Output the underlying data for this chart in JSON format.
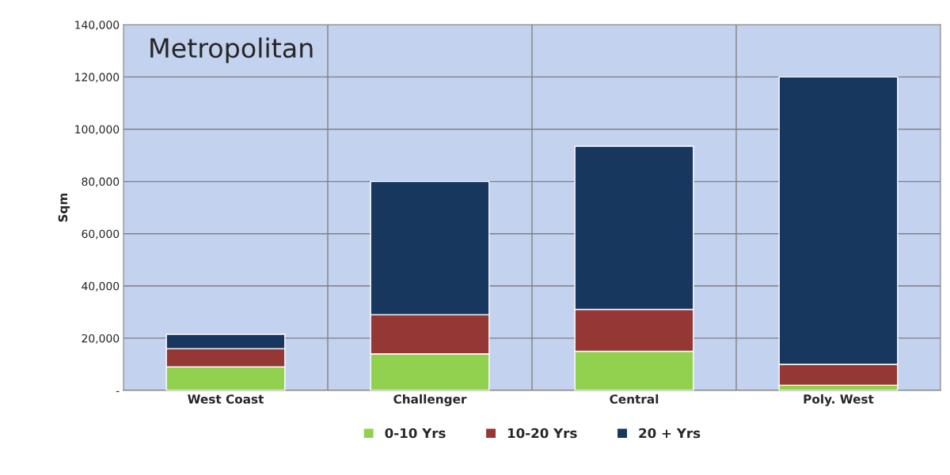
{
  "chart_data": {
    "type": "bar",
    "title": "Metropolitan",
    "ylabel": "Sqm",
    "stacked": true,
    "categories": [
      "West Coast",
      "Challenger",
      "Central",
      "Poly. West"
    ],
    "series": [
      {
        "name": "0-10 Yrs",
        "color": "#92d050",
        "values": [
          9000,
          14000,
          15000,
          2000
        ]
      },
      {
        "name": "10-20 Yrs",
        "color": "#953735",
        "values": [
          7000,
          15000,
          16000,
          8000
        ]
      },
      {
        "name": "20 + Yrs",
        "color": "#17375e",
        "values": [
          5500,
          51000,
          62500,
          110000
        ]
      }
    ],
    "ylim": [
      0,
      140000
    ],
    "yticks": [
      {
        "value": 0,
        "label": "-"
      },
      {
        "value": 20000,
        "label": "20,000"
      },
      {
        "value": 40000,
        "label": "40,000"
      },
      {
        "value": 60000,
        "label": "60,000"
      },
      {
        "value": 80000,
        "label": "80,000"
      },
      {
        "value": 100000,
        "label": "100,000"
      },
      {
        "value": 120000,
        "label": "120,000"
      },
      {
        "value": 140000,
        "label": "140,000"
      }
    ],
    "grid": true,
    "legend": "bottom"
  }
}
